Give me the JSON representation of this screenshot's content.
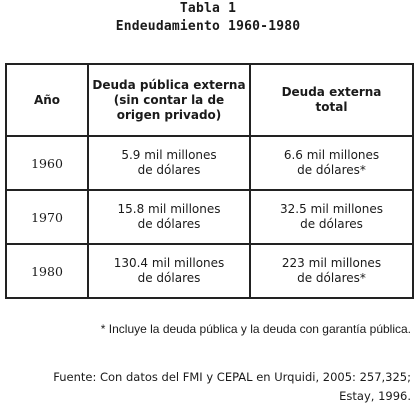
{
  "title": {
    "line1": "Tabla 1",
    "line2": "Endeudamiento 1960-1980"
  },
  "table": {
    "headers": [
      "Año",
      "Deuda pública externa\n(sin contar la de\norigen privado)",
      "Deuda externa\ntotal"
    ],
    "rows": [
      {
        "year": "1960",
        "public_debt": "5.9 mil millones\nde dólares",
        "total_debt": "6.6 mil millones\nde dólares*"
      },
      {
        "year": "1970",
        "public_debt": "15.8 mil millones\nde dólares",
        "total_debt": "32.5 mil millones\nde dólares"
      },
      {
        "year": "1980",
        "public_debt": "130.4 mil millones\nde dólares",
        "total_debt": "223 mil millones\nde dólares*"
      }
    ]
  },
  "footnote": "* Incluye la deuda pública y la deuda con garantía pública.",
  "source": {
    "line1": "Fuente: Con datos del FMI y CEPAL en Urquidi, 2005: 257,325;",
    "line2": "Estay, 1996."
  }
}
